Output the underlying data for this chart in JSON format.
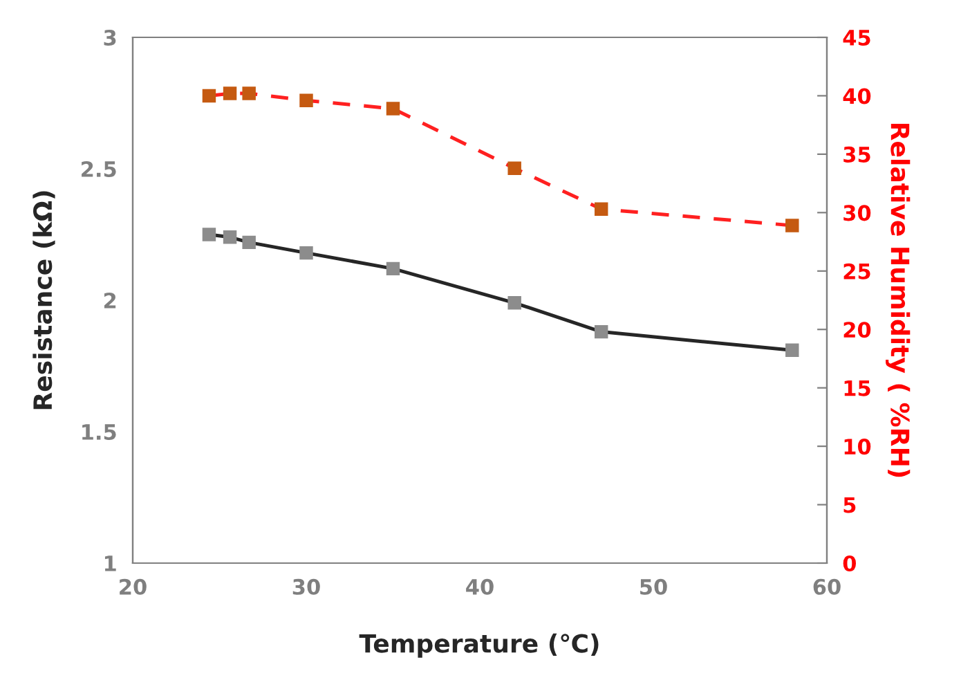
{
  "chart_data": {
    "type": "line",
    "xlabel": "Temperature (℃)",
    "ylabel": "Resistance (kΩ)",
    "y2label": "Relative Humidity ( %RH)",
    "x": [
      24.4,
      25.6,
      26.7,
      30.0,
      35.0,
      42.0,
      47.0,
      58.0
    ],
    "series": [
      {
        "color": "#262626",
        "colors": [
          "#8c8c8c",
          "#8c8c8c",
          "#8c8c8c",
          "#8c8c8c",
          "#8c8c8c",
          "#8c8c8c",
          "#8c8c8c",
          "#8c8c8c"
        ],
        "values": [
          2.25,
          2.24,
          2.22,
          2.18,
          2.12,
          1.99,
          1.88,
          1.81
        ],
        "line_style": "solid"
      },
      {
        "color": "#ff2020",
        "colors": [
          "#c55a11",
          "#c55a11",
          "#c55a11",
          "#c55a11",
          "#c55a11",
          "#c55a11",
          "#c55a11",
          "#c55a11"
        ],
        "values": [
          40.0,
          40.2,
          40.2,
          39.6,
          38.9,
          33.8,
          30.3,
          28.9
        ],
        "axis": "y2",
        "line_style": "dashed"
      }
    ],
    "marker": "square",
    "xlim": [
      20,
      60
    ],
    "xticks": [
      20,
      30,
      40,
      50,
      60
    ],
    "ylim": [
      1,
      3
    ],
    "yticks": [
      1,
      1.5,
      2,
      2.5,
      3
    ],
    "y2lim": [
      0,
      45
    ],
    "y2ticks": [
      0,
      5,
      10,
      15,
      20,
      25,
      30,
      35,
      40,
      45
    ],
    "grid": false,
    "legend": false
  }
}
